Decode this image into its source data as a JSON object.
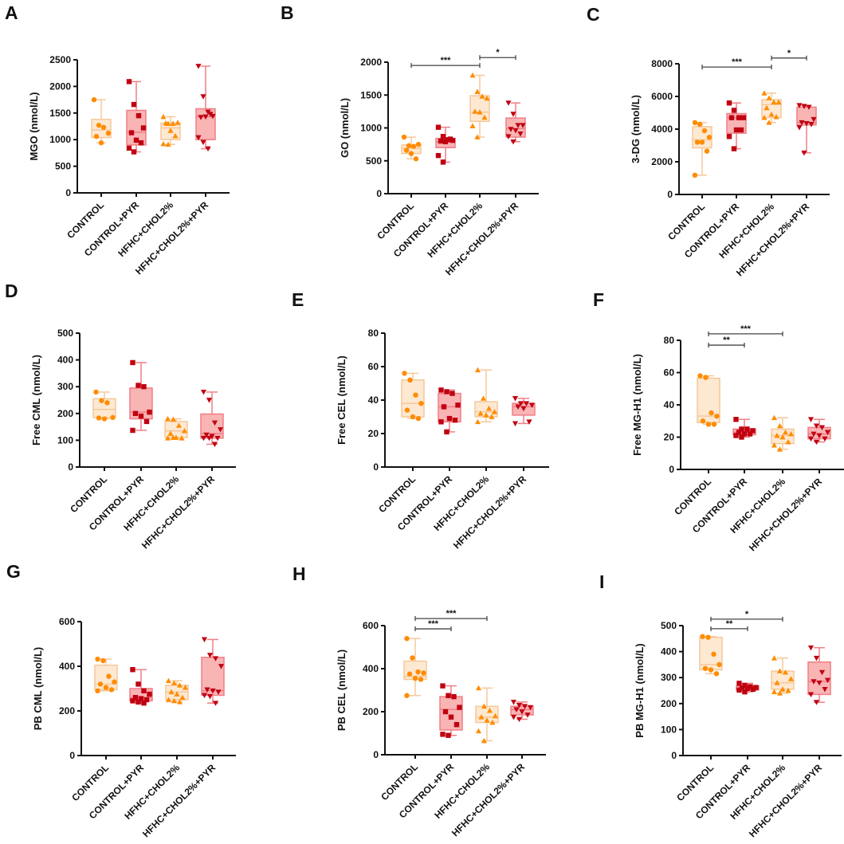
{
  "colors": {
    "control_fill": "#fde8d2",
    "control_stroke": "#f6c89a",
    "control_point": "#ff8c00",
    "pyr_fill": "#f9b4b4",
    "pyr_stroke": "#ef7f86",
    "pyr_point": "#c00010",
    "axis": "#111111",
    "bracket": "#444444"
  },
  "chart_data": {
    "type": "box",
    "groups": [
      "CONTROL",
      "CONTROL+PYR",
      "HFHC+CHOL2%",
      "HFHC+CHOL2%+PYR"
    ],
    "markers": [
      "circle",
      "square",
      "triangle-up",
      "triangle-down"
    ],
    "panels": [
      {
        "label": "A",
        "ylabel": "MGO (nmol/L)",
        "ylim": [
          0,
          2500
        ],
        "ystep": 500,
        "boxes": [
          {
            "min": 940,
            "q1": 1040,
            "median": 1180,
            "q3": 1380,
            "max": 1750,
            "points": [
              1750,
              1270,
              1230,
              1120,
              1060,
              940
            ]
          },
          {
            "min": 770,
            "q1": 900,
            "median": 1140,
            "q3": 1550,
            "max": 2090,
            "points": [
              2090,
              1660,
              1450,
              1220,
              1130,
              990,
              940,
              840,
              770
            ]
          },
          {
            "min": 910,
            "q1": 1000,
            "median": 1220,
            "q3": 1310,
            "max": 1430,
            "points": [
              1430,
              1300,
              1300,
              1320,
              1310,
              1170,
              1070,
              920,
              910
            ]
          },
          {
            "min": 830,
            "q1": 1000,
            "median": 1430,
            "q3": 1580,
            "max": 2380,
            "points": [
              2380,
              1810,
              1520,
              1440,
              1420,
              1430,
              1480,
              1040,
              950,
              830
            ]
          }
        ],
        "significance": []
      },
      {
        "label": "B",
        "ylabel": "GO (nmol/L)",
        "ylim": [
          0,
          2000
        ],
        "ystep": 500,
        "boxes": [
          {
            "min": 530,
            "q1": 610,
            "median": 690,
            "q3": 740,
            "max": 860,
            "points": [
              860,
              730,
              720,
              750,
              660,
              610,
              530
            ]
          },
          {
            "min": 480,
            "q1": 700,
            "median": 790,
            "q3": 840,
            "max": 1010,
            "points": [
              1010,
              870,
              820,
              810,
              800,
              790,
              830,
              580,
              480
            ]
          },
          {
            "min": 860,
            "q1": 1100,
            "median": 1240,
            "q3": 1490,
            "max": 1800,
            "points": [
              1800,
              1550,
              1480,
              1450,
              1250,
              1240,
              1160,
              1030,
              860
            ]
          },
          {
            "min": 790,
            "q1": 860,
            "median": 990,
            "q3": 1150,
            "max": 1380,
            "points": [
              1380,
              1210,
              1040,
              1040,
              980,
              960,
              910,
              870,
              790
            ]
          }
        ],
        "significance": [
          {
            "from": 0,
            "to": 2,
            "y": 1950,
            "text": "***"
          },
          {
            "from": 2,
            "to": 3,
            "y": 2070,
            "text": "*"
          }
        ]
      },
      {
        "label": "C",
        "ylabel": "3-DG (nmol/L)",
        "ylim": [
          0,
          8000
        ],
        "ystep": 2000,
        "boxes": [
          {
            "min": 1180,
            "q1": 2850,
            "median": 3350,
            "q3": 4150,
            "max": 4400,
            "points": [
              4400,
              4300,
              3900,
              3500,
              3200,
              3200,
              2650,
              1180
            ]
          },
          {
            "min": 2800,
            "q1": 3750,
            "median": 4700,
            "q3": 4950,
            "max": 5600,
            "points": [
              5600,
              5150,
              4700,
              4700,
              4700,
              3950,
              3950,
              3550,
              2800
            ]
          },
          {
            "min": 4400,
            "q1": 4700,
            "median": 5500,
            "q3": 5800,
            "max": 6200,
            "points": [
              6200,
              5900,
              5650,
              5650,
              5300,
              4900,
              4750,
              4700,
              4400
            ]
          },
          {
            "min": 2550,
            "q1": 4250,
            "median": 4400,
            "q3": 5350,
            "max": 5450,
            "points": [
              5450,
              5400,
              5350,
              4600,
              4400,
              4350,
              4300,
              4100,
              2550
            ]
          }
        ],
        "significance": [
          {
            "from": 0,
            "to": 2,
            "y": 7800,
            "text": "***"
          },
          {
            "from": 2,
            "to": 3,
            "y": 8350,
            "text": "*"
          }
        ]
      },
      {
        "label": "D",
        "ylabel": "Free CML (nmol/L)",
        "ylim": [
          0,
          500
        ],
        "ystep": 100,
        "boxes": [
          {
            "min": 180,
            "q1": 185,
            "median": 215,
            "q3": 255,
            "max": 280,
            "points": [
              280,
              248,
              240,
              185,
              183,
              180
            ]
          },
          {
            "min": 137,
            "q1": 180,
            "median": 205,
            "q3": 295,
            "max": 390,
            "points": [
              390,
              305,
              300,
              205,
              200,
              190,
              170,
              137
            ]
          },
          {
            "min": 108,
            "q1": 110,
            "median": 135,
            "q3": 170,
            "max": 180,
            "points": [
              180,
              178,
              155,
              135,
              125,
              110,
              108,
              108,
              110
            ]
          },
          {
            "min": 85,
            "q1": 108,
            "median": 125,
            "q3": 198,
            "max": 280,
            "points": [
              280,
              250,
              165,
              140,
              120,
              115,
              108,
              108,
              108,
              85
            ]
          }
        ],
        "significance": []
      },
      {
        "label": "E",
        "ylabel": "Free CEL (nmol/L)",
        "ylim": [
          0,
          80
        ],
        "ystep": 20,
        "boxes": [
          {
            "min": 29,
            "q1": 30,
            "median": 38,
            "q3": 52,
            "max": 56,
            "points": [
              56,
              52,
              43,
              38,
              34,
              30,
              29
            ]
          },
          {
            "min": 21,
            "q1": 27,
            "median": 36,
            "q3": 44,
            "max": 46,
            "points": [
              46,
              45,
              44,
              37,
              36,
              29,
              28,
              27,
              21
            ]
          },
          {
            "min": 27,
            "q1": 30,
            "median": 33,
            "q3": 39,
            "max": 58,
            "points": [
              58,
              41,
              35,
              33,
              32,
              31,
              30,
              27
            ]
          },
          {
            "min": 26,
            "q1": 31,
            "median": 36,
            "q3": 38,
            "max": 41,
            "points": [
              41,
              38,
              38,
              37,
              36,
              35,
              27,
              26
            ]
          }
        ],
        "significance": []
      },
      {
        "label": "F",
        "ylabel": "Free MG-H1 (nmol/L)",
        "ylim": [
          0,
          80
        ],
        "ystep": 20,
        "boxes": [
          {
            "min": 28,
            "q1": 29,
            "median": 33,
            "q3": 56.5,
            "max": 58,
            "points": [
              58,
              57,
              35,
              33,
              30,
              28,
              28
            ]
          },
          {
            "min": 20,
            "q1": 21.5,
            "median": 23,
            "q3": 25,
            "max": 31,
            "points": [
              31,
              25,
              25,
              24,
              23,
              22,
              22,
              21,
              20
            ]
          },
          {
            "min": 12.5,
            "q1": 16,
            "median": 21,
            "q3": 25,
            "max": 32,
            "points": [
              32,
              27,
              23,
              22,
              21,
              20,
              17,
              15,
              12.5
            ]
          },
          {
            "min": 17,
            "q1": 19,
            "median": 22,
            "q3": 26,
            "max": 31,
            "points": [
              31,
              27,
              26,
              23,
              22,
              21,
              19,
              19,
              17
            ]
          }
        ],
        "significance": [
          {
            "from": 0,
            "to": 1,
            "y": 77,
            "text": "**"
          },
          {
            "from": 0,
            "to": 2,
            "y": 84,
            "text": "***"
          }
        ]
      },
      {
        "label": "G",
        "ylabel": "PB CML (nmol/L)",
        "ylim": [
          0,
          600
        ],
        "ystep": 200,
        "boxes": [
          {
            "min": 290,
            "q1": 295,
            "median": 320,
            "q3": 405,
            "max": 432,
            "points": [
              432,
              425,
              355,
              330,
              320,
              305,
              295,
              290
            ]
          },
          {
            "min": 235,
            "q1": 245,
            "median": 260,
            "q3": 300,
            "max": 385,
            "points": [
              385,
              320,
              290,
              275,
              260,
              255,
              250,
              245,
              240,
              235
            ]
          },
          {
            "min": 240,
            "q1": 250,
            "median": 285,
            "q3": 315,
            "max": 335,
            "points": [
              335,
              325,
              315,
              305,
              285,
              275,
              260,
              250,
              245,
              240
            ]
          },
          {
            "min": 235,
            "q1": 270,
            "median": 290,
            "q3": 440,
            "max": 520,
            "points": [
              520,
              450,
              435,
              400,
              295,
              290,
              285,
              270,
              265,
              235
            ]
          }
        ],
        "significance": []
      },
      {
        "label": "H",
        "ylabel": "PB CEL (nmol/L)",
        "ylim": [
          0,
          600
        ],
        "ystep": 200,
        "boxes": [
          {
            "min": 275,
            "q1": 350,
            "median": 365,
            "q3": 435,
            "max": 540,
            "points": [
              540,
              450,
              385,
              380,
              375,
              355,
              350,
              275
            ]
          },
          {
            "min": 90,
            "q1": 115,
            "median": 210,
            "q3": 270,
            "max": 320,
            "points": [
              320,
              275,
              270,
              220,
              200,
              175,
              140,
              95,
              90
            ]
          },
          {
            "min": 65,
            "q1": 150,
            "median": 175,
            "q3": 225,
            "max": 310,
            "points": [
              310,
              225,
              205,
              180,
              175,
              160,
              150,
              110,
              65
            ]
          },
          {
            "min": 165,
            "q1": 185,
            "median": 210,
            "q3": 225,
            "max": 245,
            "points": [
              245,
              230,
              225,
              220,
              210,
              200,
              185,
              175,
              165
            ]
          }
        ],
        "significance": [
          {
            "from": 0,
            "to": 1,
            "y": 585,
            "text": "***"
          },
          {
            "from": 0,
            "to": 2,
            "y": 633,
            "text": "***"
          }
        ]
      },
      {
        "label": "I",
        "ylabel": "PB MG-H1 (nmol/L)",
        "ylim": [
          0,
          500
        ],
        "ystep": 100,
        "boxes": [
          {
            "min": 315,
            "q1": 330,
            "median": 350,
            "q3": 455,
            "max": 458,
            "points": [
              458,
              455,
              390,
              350,
              335,
              330,
              315
            ]
          },
          {
            "min": 245,
            "q1": 252,
            "median": 260,
            "q3": 268,
            "max": 278,
            "points": [
              278,
              270,
              265,
              262,
              260,
              258,
              255,
              252,
              245
            ]
          },
          {
            "min": 240,
            "q1": 255,
            "median": 280,
            "q3": 325,
            "max": 375,
            "points": [
              375,
              325,
              320,
              295,
              280,
              255,
              250,
              245,
              240
            ]
          },
          {
            "min": 205,
            "q1": 235,
            "median": 285,
            "q3": 360,
            "max": 415,
            "points": [
              415,
              375,
              320,
              290,
              285,
              280,
              255,
              235,
              205
            ]
          }
        ],
        "significance": [
          {
            "from": 0,
            "to": 1,
            "y": 488,
            "text": "**"
          },
          {
            "from": 0,
            "to": 2,
            "y": 525,
            "text": "*"
          }
        ]
      }
    ]
  }
}
